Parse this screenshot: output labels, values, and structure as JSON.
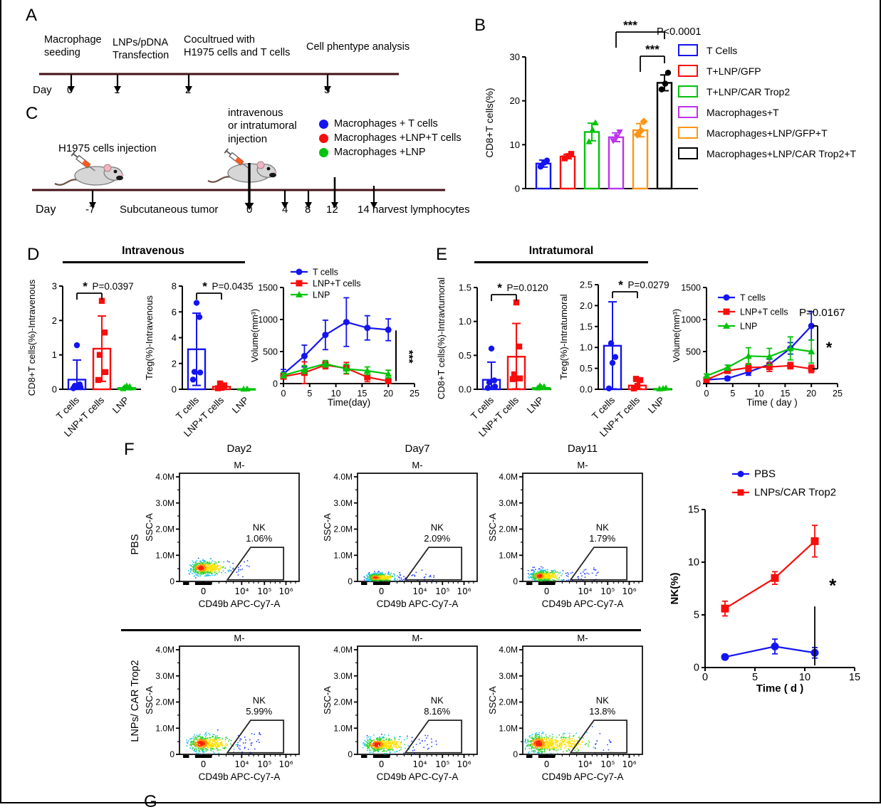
{
  "colors": {
    "blue": "#1414f0",
    "red": "#f80d0c",
    "green": "#00c40a",
    "purple": "#bb33ee",
    "orange": "#ff9415",
    "black": "#000000",
    "maroon": "#451016"
  },
  "panel_labels": {
    "A": "A",
    "B": "B",
    "C": "C",
    "D": "D",
    "E": "E",
    "F": "F",
    "G": "G"
  },
  "panelA": {
    "day_label": "Day",
    "events": [
      {
        "text": "Macrophage\nseeding",
        "day": "0"
      },
      {
        "text": "LNPs/pDNA\nTransfection",
        "day": "1"
      },
      {
        "text": "Cocultrued with\nH1975 cells and T cells",
        "day": "2"
      },
      {
        "text": "Cell phentype analysis",
        "day": "5"
      }
    ]
  },
  "panelB_legend": {
    "entries": [
      {
        "color": "blue",
        "label": "T Cells"
      },
      {
        "color": "red",
        "label": "T+LNP/GFP"
      },
      {
        "color": "green",
        "label": "T+LNP/CAR Trop2"
      },
      {
        "color": "purple",
        "label": "Macrophages+T"
      },
      {
        "color": "orange",
        "label": "Macrophages+LNP/GFP+T"
      },
      {
        "color": "black",
        "label": "Macrophages+LNP/CAR Trop2+T"
      }
    ]
  },
  "panelC": {
    "h1975_label": "H1975 cells injection",
    "injection_label": "intravenous\nor intratumoral\ninjection",
    "legend": [
      {
        "color": "blue",
        "label": "Macrophages + T cells"
      },
      {
        "color": "red",
        "label": "Macrophages +LNP+T cells"
      },
      {
        "color": "green",
        "label": "Macrophages +LNP"
      }
    ],
    "day_label": "Day",
    "day_minus7": "-7",
    "subcutaneous": "Subcutaneous tumor",
    "days": [
      "0",
      "4",
      "8",
      "12"
    ],
    "day14": "14 harvest lymphocytes"
  },
  "panelD": {
    "title": "Intravenous"
  },
  "panelE": {
    "title": "Intratumoral"
  },
  "panelF": {
    "col_headers": [
      "Day2",
      "Day7",
      "Day11"
    ],
    "row_labels": [
      "PBS",
      "LNPs/ CAR Trop2"
    ],
    "plot": {
      "title": "M-",
      "xlabel": "CD49b APC-Cy7-A",
      "ylabel": "SSC-A",
      "yticks": [
        "4.0M",
        "3.0M",
        "2.0M",
        "1.0M",
        "0"
      ],
      "xticks": [
        "0",
        "10⁴",
        "10⁵",
        "10⁶"
      ],
      "gate_label": "NK"
    },
    "percentages": [
      [
        "1.06%",
        "2.09%",
        "1.79%"
      ],
      [
        "5.99%",
        "8.16%",
        "13.8%"
      ]
    ],
    "clouds": [
      {
        "hx": 0.18,
        "hy": 0.125,
        "sx": 0.055,
        "sy": 0.042,
        "seg": 0.13,
        "tail": 0.42,
        "n": 520,
        "hot": 1.0
      },
      {
        "hx": 0.15,
        "hy": 0.035,
        "sx": 0.05,
        "sy": 0.028,
        "seg": 0.1,
        "tail": 0.5,
        "n": 520,
        "hot": 0.85
      },
      {
        "hx": 0.14,
        "hy": 0.05,
        "sx": 0.05,
        "sy": 0.034,
        "seg": 0.12,
        "tail": 0.5,
        "n": 520,
        "hot": 0.9
      },
      {
        "hx": 0.18,
        "hy": 0.1,
        "sx": 0.06,
        "sy": 0.045,
        "seg": 0.17,
        "tail": 0.5,
        "n": 560,
        "hot": 1.1
      },
      {
        "hx": 0.16,
        "hy": 0.09,
        "sx": 0.06,
        "sy": 0.04,
        "seg": 0.15,
        "tail": 0.5,
        "n": 560,
        "hot": 1.1
      },
      {
        "hx": 0.13,
        "hy": 0.1,
        "sx": 0.06,
        "sy": 0.05,
        "seg": 0.33,
        "tail": 0.62,
        "n": 640,
        "hot": 1.15
      }
    ]
  },
  "panelG_label": "G",
  "chart_data": [
    {
      "id": "B",
      "type": "bar-scatter",
      "title": "",
      "ylabel": "CD8+T cells(%)",
      "ylim": [
        0,
        30
      ],
      "yticks": [
        0,
        10,
        20,
        30
      ],
      "categories": [
        "T Cells",
        "T+LNP/GFP",
        "T+LNP/CAR Trop2",
        "Macrophages+T",
        "Macrophages+LNP/GFP+T",
        "Macrophages+LNP/CAR Trop2+T"
      ],
      "values": [
        5.7,
        7.3,
        12.9,
        11.7,
        13.3,
        24.1
      ],
      "errors": [
        0.8,
        0.5,
        2.0,
        1.0,
        1.5,
        1.8
      ],
      "points": [
        [
          5.0,
          5.9,
          6.4
        ],
        [
          6.9,
          7.4,
          7.9
        ],
        [
          10.7,
          13.4,
          15.0
        ],
        [
          10.9,
          11.8,
          12.9
        ],
        [
          12.3,
          13.2,
          15.3
        ],
        [
          22.6,
          23.9,
          26.4
        ]
      ],
      "colors": [
        "blue",
        "red",
        "green",
        "purple",
        "orange",
        "black"
      ],
      "markers": [
        "circle",
        "square",
        "triangle-up",
        "triangle-down",
        "diamond",
        "circle"
      ],
      "brackets": [
        {
          "from": 3,
          "to": 5,
          "star": "***"
        },
        {
          "from": 4,
          "to": 5,
          "star": "***"
        }
      ],
      "note": "P<0.0001"
    },
    {
      "id": "D-cd8",
      "type": "bar-scatter",
      "ylabel": "CD8+T cells(%)-Intravenous",
      "ylim": [
        0,
        3
      ],
      "yticks": [
        0,
        1,
        2,
        3
      ],
      "categories": [
        "T cells",
        "LNP+T cells",
        "LNP"
      ],
      "values": [
        0.28,
        1.18,
        0.04
      ],
      "errors": [
        0.57,
        0.95,
        0.03
      ],
      "points": [
        [
          0.03,
          0.06,
          0.1,
          0.14,
          1.28
        ],
        [
          0.27,
          0.5,
          1.0,
          1.65,
          2.57
        ],
        [
          0.02,
          0.04,
          0.06,
          0.08,
          0.1
        ]
      ],
      "colors": [
        "blue",
        "red",
        "green"
      ],
      "markers": [
        "circle",
        "square",
        "triangle-up"
      ],
      "brackets": [
        {
          "from": 0,
          "to": 1,
          "star": "*",
          "p": "P=0.0397"
        }
      ]
    },
    {
      "id": "D-treg",
      "type": "bar-scatter",
      "ylabel": "Treg(%)-Intravenous",
      "ylim": [
        0,
        8
      ],
      "yticks": [
        0,
        2,
        4,
        6,
        8
      ],
      "categories": [
        "T cells",
        "LNP+T cells",
        "LNP"
      ],
      "values": [
        3.1,
        0.2,
        0.02
      ],
      "errors": [
        2.8,
        0.18,
        0.01
      ],
      "points": [
        [
          0.75,
          1.3,
          1.35,
          5.6,
          6.7
        ],
        [
          0.08,
          0.12,
          0.3,
          0.45
        ],
        [
          0.02,
          0.03
        ]
      ],
      "colors": [
        "blue",
        "red",
        "green"
      ],
      "markers": [
        "circle",
        "square",
        "triangle-up"
      ],
      "brackets": [
        {
          "from": 0,
          "to": 1,
          "star": "*",
          "p": "P=0.0435"
        }
      ]
    },
    {
      "id": "D-vol",
      "type": "line",
      "ylabel": "Volume(mm³)",
      "xlabel": "Time(day)",
      "xlim": [
        0,
        25
      ],
      "ylim": [
        0,
        1500
      ],
      "xticks": [
        0,
        5,
        10,
        15,
        20,
        25
      ],
      "yticks": [
        0,
        500,
        1000,
        1500
      ],
      "x": [
        0,
        4,
        8,
        12,
        16,
        20
      ],
      "series": [
        {
          "name": "T cells",
          "color": "blue",
          "marker": "circle",
          "y": [
            150,
            430,
            760,
            960,
            870,
            840
          ],
          "err": [
            70,
            170,
            230,
            380,
            190,
            170
          ]
        },
        {
          "name": "LNP+T cells",
          "color": "red",
          "marker": "square",
          "y": [
            110,
            170,
            290,
            240,
            100,
            40
          ],
          "err": [
            30,
            170,
            60,
            90,
            70,
            40
          ]
        },
        {
          "name": "LNP",
          "color": "green",
          "marker": "triangle-up",
          "y": [
            130,
            220,
            310,
            230,
            200,
            150
          ],
          "err": [
            40,
            60,
            50,
            70,
            60,
            60
          ]
        }
      ],
      "sig": "***"
    },
    {
      "id": "E-cd8",
      "type": "bar-scatter",
      "ydec": 1,
      "ylabel": "CD8+T cells(%)-Intravtumoral",
      "ylim": [
        0,
        1.5
      ],
      "yticks": [
        0,
        0.5,
        1,
        1.5
      ],
      "categories": [
        "T cells",
        "LNP+T cells",
        "LNP"
      ],
      "values": [
        0.14,
        0.48,
        0.02
      ],
      "errors": [
        0.26,
        0.49,
        0.015
      ],
      "points": [
        [
          0.02,
          0.04,
          0.1,
          0.13,
          0.6
        ],
        [
          0.15,
          0.16,
          0.22,
          0.63,
          1.28
        ],
        [
          0.02,
          0.03,
          0.04,
          0.05
        ]
      ],
      "colors": [
        "blue",
        "red",
        "green"
      ],
      "markers": [
        "circle",
        "square",
        "triangle-up"
      ],
      "brackets": [
        {
          "from": 0,
          "to": 1,
          "star": "*",
          "p": "P=0.0120"
        }
      ]
    },
    {
      "id": "E-treg",
      "type": "bar-scatter",
      "ydec": 1,
      "ylabel": "Treg(%)-Intratumoral",
      "ylim": [
        0,
        2.5
      ],
      "yticks": [
        0,
        0.5,
        1,
        1.5,
        2,
        2.5
      ],
      "categories": [
        "T cells",
        "LNP+T cells",
        "LNP"
      ],
      "values": [
        1.04,
        0.09,
        0.01
      ],
      "errors": [
        1.05,
        0.1,
        0.01
      ],
      "points": [
        [
          0.02,
          0.63,
          0.77,
          1.1
        ],
        [
          0.02,
          0.08,
          0.22,
          0.25
        ],
        [
          0.01,
          0.02,
          0.03
        ]
      ],
      "colors": [
        "blue",
        "red",
        "green"
      ],
      "markers": [
        "circle",
        "square",
        "triangle-up"
      ],
      "brackets": [
        {
          "from": 0,
          "to": 1,
          "star": "*",
          "p": "P=0.0279"
        }
      ]
    },
    {
      "id": "E-vol",
      "type": "line",
      "ylabel": "Volume(mm³)",
      "xlabel": "Time ( day )",
      "xlim": [
        0,
        25
      ],
      "ylim": [
        0,
        1500
      ],
      "xticks": [
        0,
        5,
        10,
        15,
        20,
        25
      ],
      "yticks": [
        0,
        500,
        1000,
        1500
      ],
      "x": [
        0,
        4,
        8,
        12,
        16,
        20
      ],
      "series": [
        {
          "name": "T cells",
          "color": "blue",
          "marker": "circle",
          "y": [
            60,
            80,
            180,
            300,
            550,
            900
          ],
          "err": [
            20,
            30,
            50,
            80,
            90,
            220
          ]
        },
        {
          "name": "LNP+T cells",
          "color": "red",
          "marker": "square",
          "y": [
            60,
            200,
            250,
            260,
            280,
            230
          ],
          "err": [
            20,
            40,
            60,
            70,
            50,
            60
          ]
        },
        {
          "name": "LNP",
          "color": "green",
          "marker": "triangle-up",
          "y": [
            120,
            250,
            430,
            420,
            550,
            500
          ],
          "err": [
            30,
            40,
            130,
            130,
            180,
            180
          ]
        }
      ],
      "note": "P=0.0167",
      "sig": "*"
    },
    {
      "id": "F-nk",
      "type": "line",
      "ylabel": "NK(%)",
      "xlabel": "Time ( d )",
      "xlim": [
        0,
        15
      ],
      "ylim": [
        0,
        15
      ],
      "xticks": [
        0,
        5,
        10,
        15
      ],
      "yticks": [
        0,
        5,
        10,
        15
      ],
      "x": [
        2,
        7,
        11
      ],
      "series": [
        {
          "name": "PBS",
          "color": "blue",
          "marker": "circle",
          "y": [
            1.0,
            2.0,
            1.4
          ],
          "err": [
            0.15,
            0.7,
            0.5
          ]
        },
        {
          "name": "LNPs/CAR Trop2",
          "color": "red",
          "marker": "square",
          "y": [
            5.6,
            8.5,
            12.0
          ],
          "err": [
            0.7,
            0.6,
            1.5
          ]
        }
      ],
      "sig": "*"
    }
  ]
}
